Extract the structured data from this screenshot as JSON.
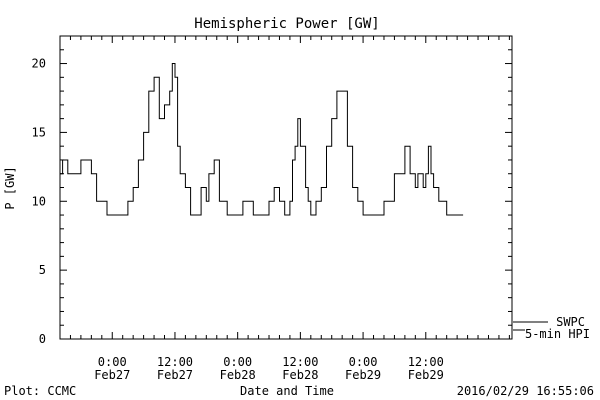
{
  "chart_data": {
    "type": "line",
    "title": "Hemispheric Power [GW]",
    "ylabel": "P [GW]",
    "xlabel": "Date and Time",
    "ylim": [
      0,
      22
    ],
    "xlim": [
      "2016-02-26T14:00",
      "2016-03-01T04:30"
    ],
    "yticks": [
      0,
      5,
      10,
      15,
      20
    ],
    "xticks": [
      {
        "time": "2016-02-27T00:00",
        "line1": "0:00",
        "line2": "Feb27"
      },
      {
        "time": "2016-02-27T12:00",
        "line1": "12:00",
        "line2": "Feb27"
      },
      {
        "time": "2016-02-28T00:00",
        "line1": "0:00",
        "line2": "Feb28"
      },
      {
        "time": "2016-02-28T12:00",
        "line1": "12:00",
        "line2": "Feb28"
      },
      {
        "time": "2016-02-29T00:00",
        "line1": "0:00",
        "line2": "Feb29"
      },
      {
        "time": "2016-02-29T12:00",
        "line1": "12:00",
        "line2": "Feb29"
      }
    ],
    "grid": false,
    "series": [
      {
        "name": "SWPC",
        "x": [
          "2016-02-26T14:00",
          "2016-02-26T14:30",
          "2016-02-26T15:00",
          "2016-02-26T15:30",
          "2016-02-26T16:00",
          "2016-02-26T17:00",
          "2016-02-26T18:00",
          "2016-02-26T19:00",
          "2016-02-26T20:00",
          "2016-02-26T21:00",
          "2016-02-26T22:00",
          "2016-02-26T23:00",
          "2016-02-27T00:00",
          "2016-02-27T01:30",
          "2016-02-27T03:00",
          "2016-02-27T04:00",
          "2016-02-27T05:00",
          "2016-02-27T06:00",
          "2016-02-27T07:00",
          "2016-02-27T08:00",
          "2016-02-27T09:00",
          "2016-02-27T10:00",
          "2016-02-27T11:00",
          "2016-02-27T11:30",
          "2016-02-27T12:00",
          "2016-02-27T12:30",
          "2016-02-27T13:00",
          "2016-02-27T14:00",
          "2016-02-27T15:00",
          "2016-02-27T16:00",
          "2016-02-27T17:00",
          "2016-02-27T18:00",
          "2016-02-27T18:30",
          "2016-02-27T19:30",
          "2016-02-27T20:30",
          "2016-02-27T21:00",
          "2016-02-27T22:00",
          "2016-02-27T23:00",
          "2016-02-28T00:00",
          "2016-02-28T01:00",
          "2016-02-28T02:00",
          "2016-02-28T03:00",
          "2016-02-28T04:00",
          "2016-02-28T05:00",
          "2016-02-28T06:00",
          "2016-02-28T07:00",
          "2016-02-28T08:00",
          "2016-02-28T09:00",
          "2016-02-28T10:00",
          "2016-02-28T10:30",
          "2016-02-28T11:00",
          "2016-02-28T11:30",
          "2016-02-28T12:00",
          "2016-02-28T13:00",
          "2016-02-28T13:30",
          "2016-02-28T14:00",
          "2016-02-28T15:00",
          "2016-02-28T16:00",
          "2016-02-28T17:00",
          "2016-02-28T18:00",
          "2016-02-28T19:00",
          "2016-02-28T20:00",
          "2016-02-28T21:00",
          "2016-02-28T22:00",
          "2016-02-28T23:00",
          "2016-02-29T00:00",
          "2016-02-29T00:30",
          "2016-02-29T01:00",
          "2016-02-29T02:00",
          "2016-02-29T03:00",
          "2016-02-29T04:00",
          "2016-02-29T06:00",
          "2016-02-29T08:00",
          "2016-02-29T09:00",
          "2016-02-29T10:00",
          "2016-02-29T10:30",
          "2016-02-29T11:00",
          "2016-02-29T11:30",
          "2016-02-29T12:00",
          "2016-02-29T12:30",
          "2016-02-29T13:00",
          "2016-02-29T13:30",
          "2016-02-29T14:00",
          "2016-02-29T14:30",
          "2016-02-29T15:00",
          "2016-02-29T16:00",
          "2016-02-29T17:00",
          "2016-02-29T18:00"
        ],
        "y": [
          12,
          13,
          13,
          12,
          12,
          12,
          13,
          13,
          12,
          10,
          10,
          9,
          9,
          9,
          10,
          11,
          13,
          15,
          18,
          19,
          16,
          17,
          18,
          20,
          19,
          14,
          12,
          11,
          9,
          9,
          11,
          10,
          12,
          13,
          10,
          10,
          9,
          9,
          9,
          10,
          10,
          9,
          9,
          9,
          10,
          11,
          10,
          9,
          10,
          13,
          14,
          16,
          14,
          11,
          10,
          9,
          10,
          11,
          14,
          16,
          18,
          18,
          14,
          11,
          10,
          9,
          9,
          9,
          9,
          9,
          10,
          12,
          14,
          12,
          11,
          12,
          12,
          11,
          12,
          14,
          12,
          11,
          11,
          10,
          10,
          9,
          9,
          9
        ]
      }
    ],
    "legend": {
      "position": "bottom-right",
      "entries": [
        "SWPC",
        "5-min HPI"
      ]
    }
  },
  "footer": {
    "left": "Plot: CCMC",
    "center": "Date and Time",
    "right": "2016/02/29 16:55:06"
  },
  "legend_labels": {
    "swpc": "SWPC",
    "hpi": "5-min HPI"
  }
}
